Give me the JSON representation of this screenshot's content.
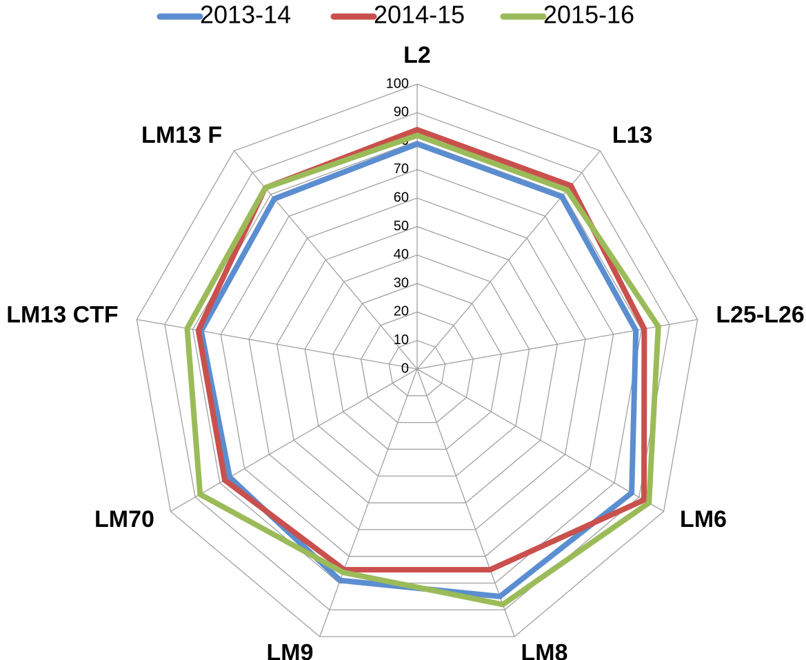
{
  "chart_data": {
    "type": "radar",
    "categories": [
      "L2",
      "L13",
      "L25-L26",
      "LM6",
      "LM8",
      "LM9",
      "LM70",
      "LM13 CTF",
      "LM13 F"
    ],
    "series": [
      {
        "name": "2013-14",
        "color": "#5b8ed0",
        "values": [
          79,
          79,
          78,
          87,
          85,
          79,
          76,
          77,
          78
        ]
      },
      {
        "name": "2014-15",
        "color": "#c9504d",
        "values": [
          84,
          84,
          81,
          92,
          75,
          75,
          78,
          78,
          83
        ]
      },
      {
        "name": "2015-16",
        "color": "#9bbb59",
        "values": [
          82,
          82,
          86,
          94,
          88,
          76,
          88,
          82,
          83
        ]
      }
    ],
    "ylim": [
      0,
      100
    ],
    "yticks": [
      0,
      10,
      20,
      30,
      40,
      50,
      60,
      70,
      80,
      90,
      100
    ],
    "grid": true,
    "legend": "top"
  }
}
